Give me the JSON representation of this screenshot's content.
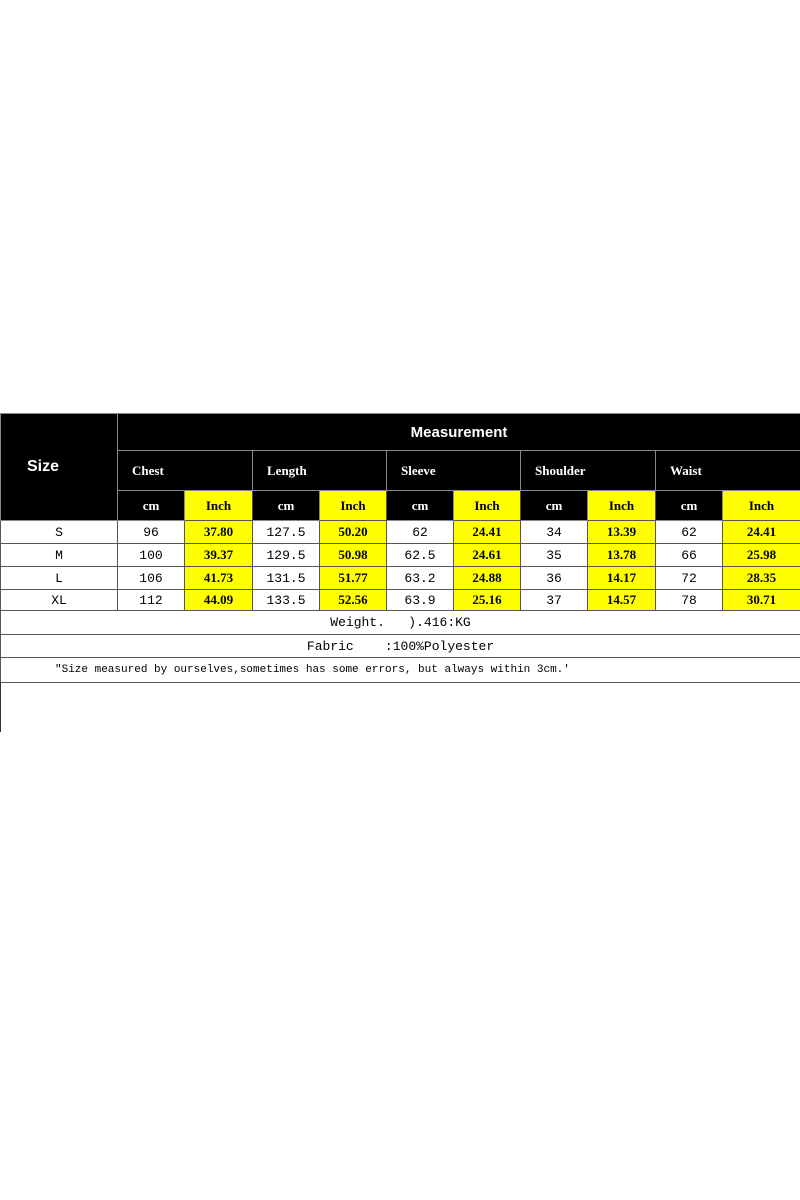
{
  "table": {
    "size_header": "Size",
    "title": "Measurement",
    "groups": [
      "Chest",
      "Length",
      "Sleeve",
      "Shoulder",
      "Waist"
    ],
    "units": [
      "cm",
      "Inch"
    ],
    "rows": [
      {
        "size": "S",
        "values": [
          "96",
          "37.80",
          "127.5",
          "50.20",
          "62",
          "24.41",
          "34",
          "13.39",
          "62",
          "24.41"
        ]
      },
      {
        "size": "M",
        "values": [
          "100",
          "39.37",
          "129.5",
          "50.98",
          "62.5",
          "24.61",
          "35",
          "13.78",
          "66",
          "25.98"
        ]
      },
      {
        "size": "L",
        "values": [
          "106",
          "41.73",
          "131.5",
          "51.77",
          "63.2",
          "24.88",
          "36",
          "14.17",
          "72",
          "28.35"
        ]
      },
      {
        "size": "XL",
        "values": [
          "112",
          "44.09",
          "133.5",
          "52.56",
          "63.9",
          "25.16",
          "37",
          "14.57",
          "78",
          "30.71"
        ]
      }
    ],
    "weight": "Weight.   ).416:KG",
    "fabric": "Fabric    :100%Polyester",
    "note": "\"Size measured by ourselves,sometimes has some errors, but always within 3cm.'"
  },
  "colors": {
    "header_bg": "#000000",
    "inch_highlight": "#ffff00"
  }
}
